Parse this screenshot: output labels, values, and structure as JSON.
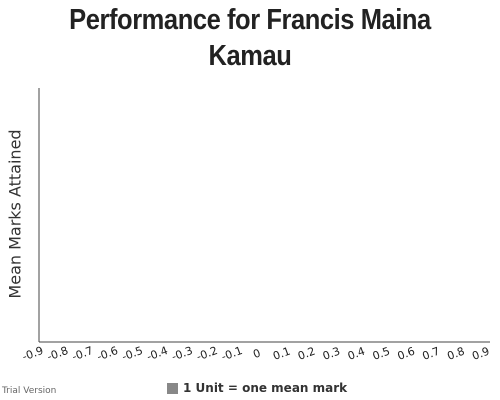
{
  "chart_data": {
    "type": "bar",
    "title": "Performance for Francis Maina Kamau",
    "ylabel": "Mean Marks Attained",
    "xlim": [
      -0.9,
      0.9
    ],
    "x_ticks": [
      "-0.9",
      "-0.8",
      "-0.7",
      "-0.6",
      "-0.5",
      "-0.4",
      "-0.3",
      "-0.2",
      "-0.1",
      "0",
      "0.1",
      "0.2",
      "0.3",
      "0.4",
      "0.5",
      "0.6",
      "0.7",
      "0.8",
      "0.9"
    ],
    "categories": [],
    "values": [],
    "legend": {
      "placement": "bottom",
      "label": "1 Unit = one mean mark",
      "color": "#888888"
    }
  },
  "footer": {
    "trial_text": "Trial Version"
  },
  "colors": {
    "axis": "#444444",
    "text": "#222222"
  }
}
